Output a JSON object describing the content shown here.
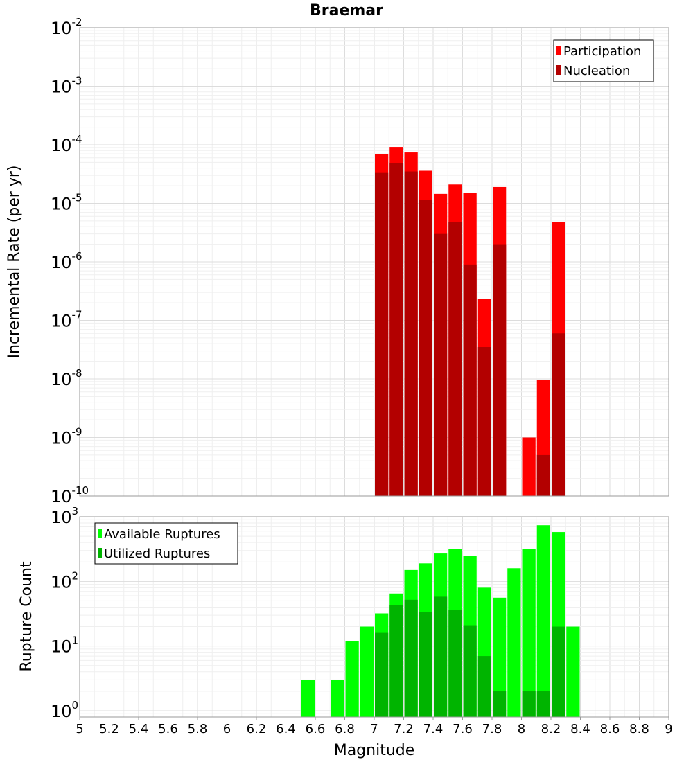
{
  "chart_data": [
    {
      "type": "bar",
      "title": "Braemar",
      "ylabel": "Incremental Rate (per yr)",
      "yscale": "log",
      "ylim": [
        1e-10,
        0.01
      ],
      "xlim": [
        5,
        9
      ],
      "grid": true,
      "legend_position": "top-right",
      "bin_width": 0.1,
      "series": [
        {
          "name": "Participation",
          "color": "#ff0000",
          "points": [
            {
              "x": 7.05,
              "y": 7e-05
            },
            {
              "x": 7.15,
              "y": 9.2e-05
            },
            {
              "x": 7.25,
              "y": 7.4e-05
            },
            {
              "x": 7.35,
              "y": 3.6e-05
            },
            {
              "x": 7.45,
              "y": 1.45e-05
            },
            {
              "x": 7.55,
              "y": 2.1e-05
            },
            {
              "x": 7.65,
              "y": 1.5e-05
            },
            {
              "x": 7.75,
              "y": 2.3e-07
            },
            {
              "x": 7.85,
              "y": 1.9e-05
            },
            {
              "x": 8.05,
              "y": 1e-09
            },
            {
              "x": 8.15,
              "y": 9.5e-09
            },
            {
              "x": 8.25,
              "y": 4.8e-06
            }
          ]
        },
        {
          "name": "Nucleation",
          "color": "#b30000",
          "points": [
            {
              "x": 7.05,
              "y": 3.3e-05
            },
            {
              "x": 7.15,
              "y": 4.8e-05
            },
            {
              "x": 7.25,
              "y": 3.5e-05
            },
            {
              "x": 7.35,
              "y": 1.15e-05
            },
            {
              "x": 7.45,
              "y": 3e-06
            },
            {
              "x": 7.55,
              "y": 4.8e-06
            },
            {
              "x": 7.65,
              "y": 9e-07
            },
            {
              "x": 7.75,
              "y": 3.5e-08
            },
            {
              "x": 7.85,
              "y": 2e-06
            },
            {
              "x": 8.15,
              "y": 5e-10
            },
            {
              "x": 8.25,
              "y": 6e-08
            }
          ]
        }
      ],
      "yticks": [
        {
          "base": "10",
          "exp": "-2"
        },
        {
          "base": "10",
          "exp": "-3"
        },
        {
          "base": "10",
          "exp": "-4"
        },
        {
          "base": "10",
          "exp": "-5"
        },
        {
          "base": "10",
          "exp": "-6"
        },
        {
          "base": "10",
          "exp": "-7"
        },
        {
          "base": "10",
          "exp": "-8"
        },
        {
          "base": "10",
          "exp": "-9"
        },
        {
          "base": "10",
          "exp": "-10"
        }
      ]
    },
    {
      "type": "bar",
      "xlabel": "Magnitude",
      "ylabel": "Rupture Count",
      "yscale": "log",
      "ylim": [
        0.8,
        1000
      ],
      "xlim": [
        5,
        9
      ],
      "grid": true,
      "legend_position": "top-left",
      "bin_width": 0.1,
      "series": [
        {
          "name": "Available Ruptures",
          "color": "#00ff00",
          "points": [
            {
              "x": 6.55,
              "y": 3
            },
            {
              "x": 6.75,
              "y": 3
            },
            {
              "x": 6.85,
              "y": 12
            },
            {
              "x": 6.95,
              "y": 20
            },
            {
              "x": 7.05,
              "y": 32
            },
            {
              "x": 7.15,
              "y": 65
            },
            {
              "x": 7.25,
              "y": 150
            },
            {
              "x": 7.35,
              "y": 190
            },
            {
              "x": 7.45,
              "y": 270
            },
            {
              "x": 7.55,
              "y": 320
            },
            {
              "x": 7.65,
              "y": 250
            },
            {
              "x": 7.75,
              "y": 80
            },
            {
              "x": 7.85,
              "y": 56
            },
            {
              "x": 7.95,
              "y": 160
            },
            {
              "x": 8.05,
              "y": 320
            },
            {
              "x": 8.15,
              "y": 740
            },
            {
              "x": 8.25,
              "y": 580
            },
            {
              "x": 8.35,
              "y": 20
            }
          ]
        },
        {
          "name": "Utilized Ruptures",
          "color": "#00b400",
          "points": [
            {
              "x": 7.05,
              "y": 16
            },
            {
              "x": 7.15,
              "y": 43
            },
            {
              "x": 7.25,
              "y": 52
            },
            {
              "x": 7.35,
              "y": 34
            },
            {
              "x": 7.45,
              "y": 58
            },
            {
              "x": 7.55,
              "y": 36
            },
            {
              "x": 7.65,
              "y": 21
            },
            {
              "x": 7.75,
              "y": 7
            },
            {
              "x": 7.85,
              "y": 2
            },
            {
              "x": 8.05,
              "y": 2
            },
            {
              "x": 8.15,
              "y": 2
            },
            {
              "x": 8.25,
              "y": 20
            }
          ]
        }
      ],
      "yticks": [
        {
          "base": "10",
          "exp": "3"
        },
        {
          "base": "10",
          "exp": "2"
        },
        {
          "base": "10",
          "exp": "1"
        },
        {
          "base": "10",
          "exp": "0"
        }
      ]
    }
  ],
  "xticks": [
    "5",
    "5.2",
    "5.4",
    "5.6",
    "5.8",
    "6",
    "6.2",
    "6.4",
    "6.6",
    "6.8",
    "7",
    "7.2",
    "7.4",
    "7.6",
    "7.8",
    "8",
    "8.2",
    "8.4",
    "8.6",
    "8.8",
    "9"
  ]
}
